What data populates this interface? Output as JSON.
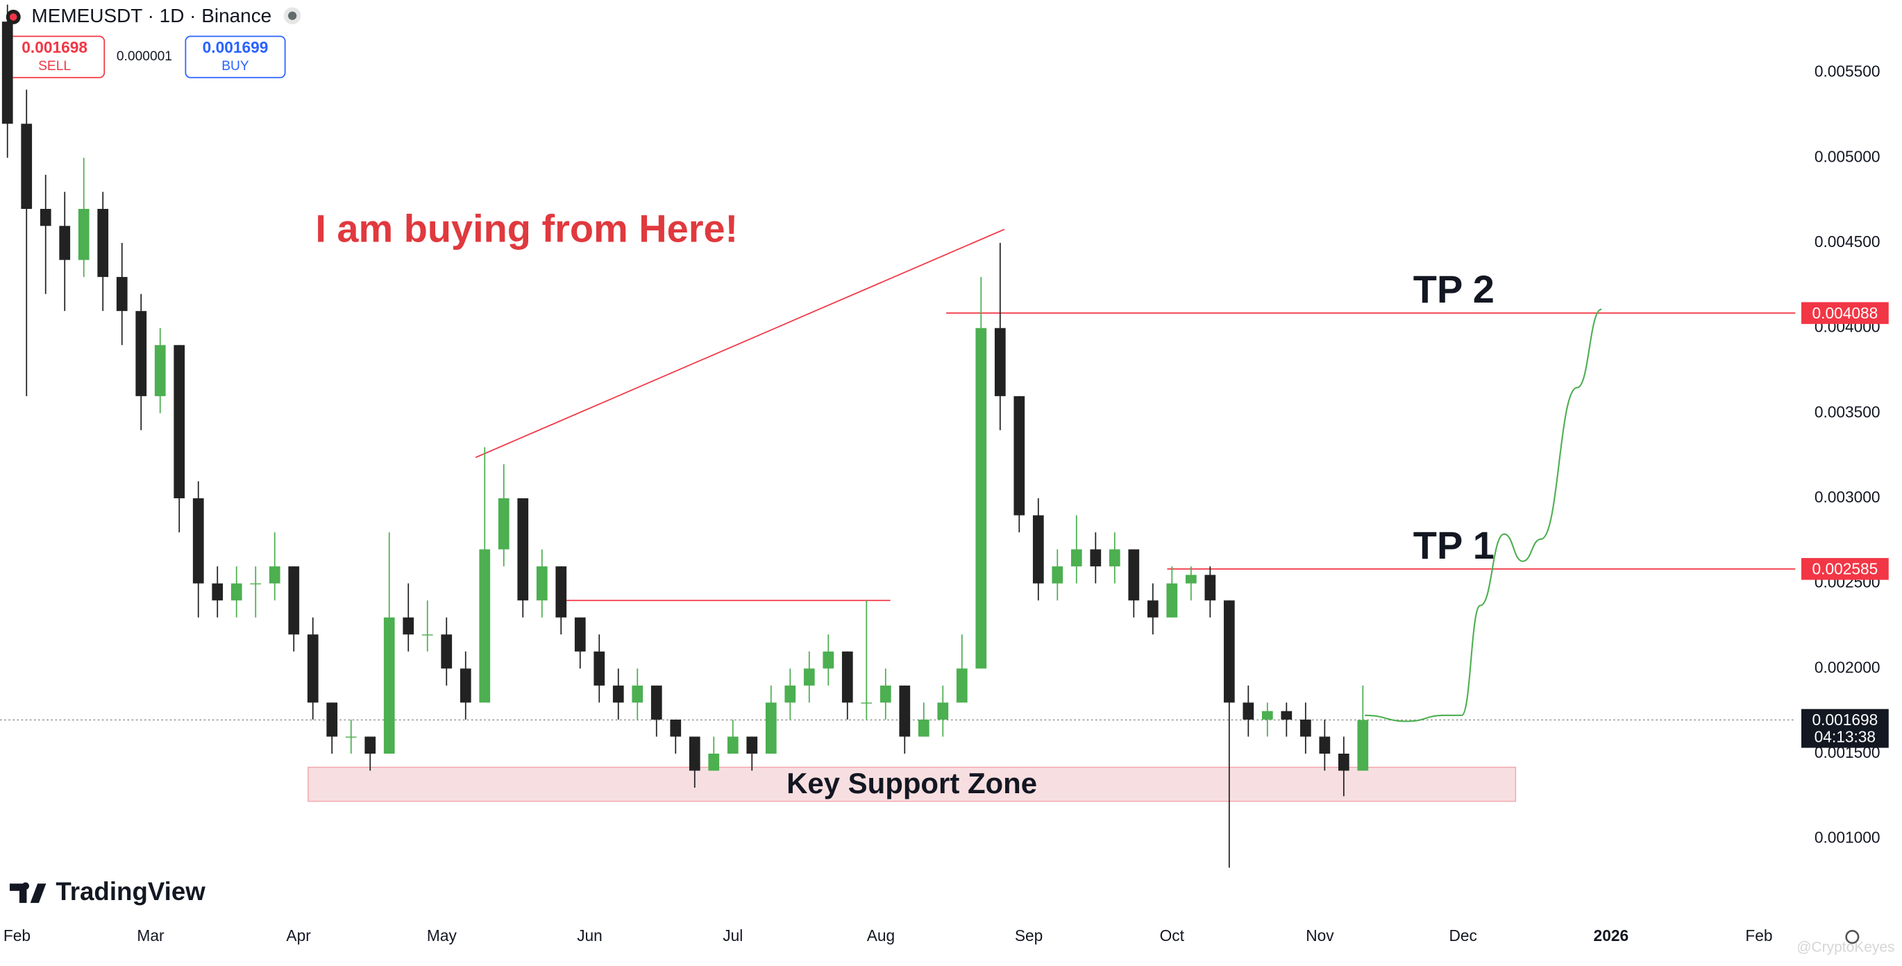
{
  "header": {
    "symbol": "MEMEUSDT · 1D · Binance",
    "sell_price": 0.001698,
    "sell_label": "SELL",
    "spread": 1e-06,
    "buy_price": 0.001699,
    "buy_label": "BUY"
  },
  "branding": {
    "logo": "TradingView",
    "watermark": "@CryptoKeyes"
  },
  "chart_data": {
    "type": "candlestick",
    "title": "I am buying from Here!",
    "up_color": "#4caf50",
    "down_color": "#222222",
    "xlim": [
      -3.56,
      372.6
    ],
    "xticks": [
      {
        "value": 0,
        "label": "Feb"
      },
      {
        "value": 28,
        "label": "Mar"
      },
      {
        "value": 59,
        "label": "Apr"
      },
      {
        "value": 89,
        "label": "May"
      },
      {
        "value": 120,
        "label": "Jun"
      },
      {
        "value": 150,
        "label": "Jul"
      },
      {
        "value": 181,
        "label": "Aug"
      },
      {
        "value": 212,
        "label": "Sep"
      },
      {
        "value": 242,
        "label": "Oct"
      },
      {
        "value": 273,
        "label": "Nov"
      },
      {
        "value": 303,
        "label": "Dec"
      },
      {
        "value": 334,
        "label": "2026",
        "bold": true
      },
      {
        "value": 365,
        "label": "Feb"
      }
    ],
    "ylim": [
      0.000516,
      0.005927
    ],
    "yticks": [
      {
        "value": 0.0055,
        "label": "0.005500"
      },
      {
        "value": 0.005,
        "label": "0.005000"
      },
      {
        "value": 0.0045,
        "label": "0.004500"
      },
      {
        "value": 0.004,
        "label": "0.004000"
      },
      {
        "value": 0.0035,
        "label": "0.003500"
      },
      {
        "value": 0.003,
        "label": "0.003000"
      },
      {
        "value": 0.0025,
        "label": "0.002500"
      },
      {
        "value": 0.002,
        "label": "0.002000"
      },
      {
        "value": 0.0015,
        "label": "0.001500"
      },
      {
        "value": 0.001,
        "label": "0.001000"
      }
    ],
    "x": [
      -2,
      2,
      6,
      10,
      14,
      18,
      22,
      26,
      30,
      34,
      38,
      42,
      46,
      50,
      54,
      58,
      62,
      66,
      70,
      74,
      78,
      82,
      86,
      90,
      94,
      98,
      102,
      106,
      110,
      114,
      118,
      122,
      126,
      130,
      134,
      138,
      142,
      146,
      150,
      154,
      158,
      162,
      166,
      170,
      174,
      178,
      182,
      186,
      190,
      194,
      198,
      202,
      206,
      210,
      214,
      218,
      222,
      226,
      230,
      234,
      238,
      242,
      246,
      250,
      254,
      258,
      262,
      266,
      270,
      274,
      278,
      282
    ],
    "open": [
      0.0058,
      0.0052,
      0.0047,
      0.0046,
      0.0044,
      0.0047,
      0.0043,
      0.0041,
      0.0036,
      0.0039,
      0.003,
      0.0025,
      0.0024,
      0.0025,
      0.0025,
      0.0026,
      0.0022,
      0.0018,
      0.0016,
      0.0016,
      0.0015,
      0.0023,
      0.0022,
      0.0022,
      0.002,
      0.0018,
      0.0027,
      0.003,
      0.0024,
      0.0026,
      0.0023,
      0.0021,
      0.0019,
      0.0018,
      0.0019,
      0.0017,
      0.0016,
      0.0014,
      0.0015,
      0.0016,
      0.0015,
      0.0018,
      0.0019,
      0.002,
      0.0021,
      0.0018,
      0.0018,
      0.0019,
      0.0016,
      0.0017,
      0.0018,
      0.002,
      0.004,
      0.0036,
      0.0029,
      0.0025,
      0.0026,
      0.0027,
      0.0026,
      0.0027,
      0.0024,
      0.0023,
      0.0025,
      0.00255,
      0.0024,
      0.0018,
      0.0017,
      0.00175,
      0.0017,
      0.0016,
      0.0015,
      0.0014
    ],
    "high": [
      0.0059,
      0.0054,
      0.0049,
      0.0048,
      0.005,
      0.0048,
      0.0045,
      0.0042,
      0.004,
      0.0039,
      0.0031,
      0.0026,
      0.0026,
      0.0026,
      0.0028,
      0.0026,
      0.0023,
      0.0018,
      0.0017,
      0.0016,
      0.0028,
      0.0025,
      0.0024,
      0.0023,
      0.0021,
      0.0033,
      0.0032,
      0.003,
      0.0027,
      0.0026,
      0.0023,
      0.0022,
      0.002,
      0.002,
      0.0019,
      0.0017,
      0.0016,
      0.0016,
      0.0017,
      0.0016,
      0.0019,
      0.002,
      0.0021,
      0.0022,
      0.0021,
      0.0024,
      0.002,
      0.0019,
      0.0018,
      0.0019,
      0.0022,
      0.0043,
      0.0045,
      0.0036,
      0.003,
      0.0027,
      0.0029,
      0.0028,
      0.0028,
      0.0027,
      0.0025,
      0.0026,
      0.0026,
      0.0026,
      0.0024,
      0.0019,
      0.0018,
      0.0018,
      0.0018,
      0.0017,
      0.0016,
      0.0019
    ],
    "low": [
      0.005,
      0.0036,
      0.0042,
      0.0041,
      0.0043,
      0.0041,
      0.0039,
      0.0034,
      0.0035,
      0.0028,
      0.0023,
      0.0023,
      0.0023,
      0.0023,
      0.0024,
      0.0021,
      0.0017,
      0.0015,
      0.0015,
      0.0014,
      0.0015,
      0.0021,
      0.0021,
      0.0019,
      0.0017,
      0.0018,
      0.0026,
      0.0023,
      0.0023,
      0.0022,
      0.002,
      0.0018,
      0.0017,
      0.0017,
      0.0016,
      0.0015,
      0.0013,
      0.0014,
      0.0015,
      0.0014,
      0.0015,
      0.0017,
      0.0018,
      0.0019,
      0.0017,
      0.0017,
      0.0017,
      0.0015,
      0.0016,
      0.0016,
      0.0018,
      0.002,
      0.0034,
      0.0028,
      0.0024,
      0.0024,
      0.0025,
      0.0025,
      0.0025,
      0.0023,
      0.0022,
      0.0023,
      0.0024,
      0.0023,
      0.00083,
      0.0016,
      0.0016,
      0.0016,
      0.0015,
      0.0014,
      0.00125,
      0.0014
    ],
    "close": [
      0.0052,
      0.0047,
      0.0046,
      0.0044,
      0.0047,
      0.0043,
      0.0041,
      0.0036,
      0.0039,
      0.003,
      0.0025,
      0.0024,
      0.0025,
      0.0025,
      0.0026,
      0.0022,
      0.0018,
      0.0016,
      0.0016,
      0.0015,
      0.0023,
      0.0022,
      0.0022,
      0.002,
      0.0018,
      0.0027,
      0.003,
      0.0024,
      0.0026,
      0.0023,
      0.0021,
      0.0019,
      0.0018,
      0.0019,
      0.0017,
      0.0016,
      0.0014,
      0.0015,
      0.0016,
      0.0015,
      0.0018,
      0.0019,
      0.002,
      0.0021,
      0.0018,
      0.0018,
      0.0019,
      0.0016,
      0.0017,
      0.0018,
      0.002,
      0.004,
      0.0036,
      0.0029,
      0.0025,
      0.0026,
      0.0027,
      0.0026,
      0.0027,
      0.0024,
      0.0023,
      0.0025,
      0.00255,
      0.0024,
      0.0018,
      0.0017,
      0.00175,
      0.0017,
      0.0016,
      0.0015,
      0.0014,
      0.001698
    ],
    "last_price": 0.001698,
    "countdown": "04:13:38",
    "trend_lines": [
      {
        "x": [
          96.1,
          206.9
        ],
        "values": [
          0.00324,
          0.00458
        ],
        "color": "#f23645"
      },
      {
        "x": [
          112.9,
          183
        ],
        "values": [
          0.0024,
          0.0024
        ],
        "color": "#f23645"
      }
    ],
    "levels": [
      {
        "value": 0.004088,
        "x_start": 194.7,
        "label": "TP 2",
        "color": "#f23645"
      },
      {
        "value": 0.002585,
        "x_start": 241,
        "label": "TP 1",
        "color": "#f23645"
      }
    ],
    "zone": {
      "low": 0.00122,
      "high": 0.00142,
      "x": [
        61,
        314
      ],
      "label": "Key Support Zone",
      "color": "#f7dfe1"
    },
    "projection": {
      "x": [
        282.4,
        291.3,
        299,
        302.7,
        306.6,
        311.6,
        315.5,
        319.3,
        326.9,
        332
      ],
      "values": [
        0.001725,
        0.00169,
        0.001725,
        0.001725,
        0.00237,
        0.00279,
        0.00263,
        0.00276,
        0.00365,
        0.00411
      ],
      "color": "#4caf50"
    }
  }
}
